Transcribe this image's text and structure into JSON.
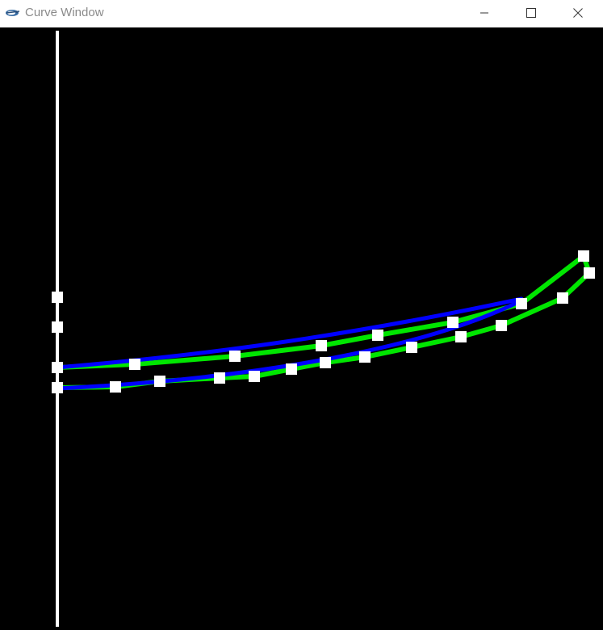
{
  "window": {
    "title": "Curve Window",
    "controls": {
      "minimize_icon": "minimize-icon",
      "maximize_icon": "maximize-icon",
      "close_icon": "close-icon"
    }
  },
  "colors": {
    "titlebar_bg": "#ffffff",
    "title_text": "#8a8a8a",
    "canvas_bg": "#000000",
    "axis": "#ffffff",
    "control_polygon": "#00e600",
    "curve": "#0000ff",
    "control_point": "#ffffff"
  }
}
